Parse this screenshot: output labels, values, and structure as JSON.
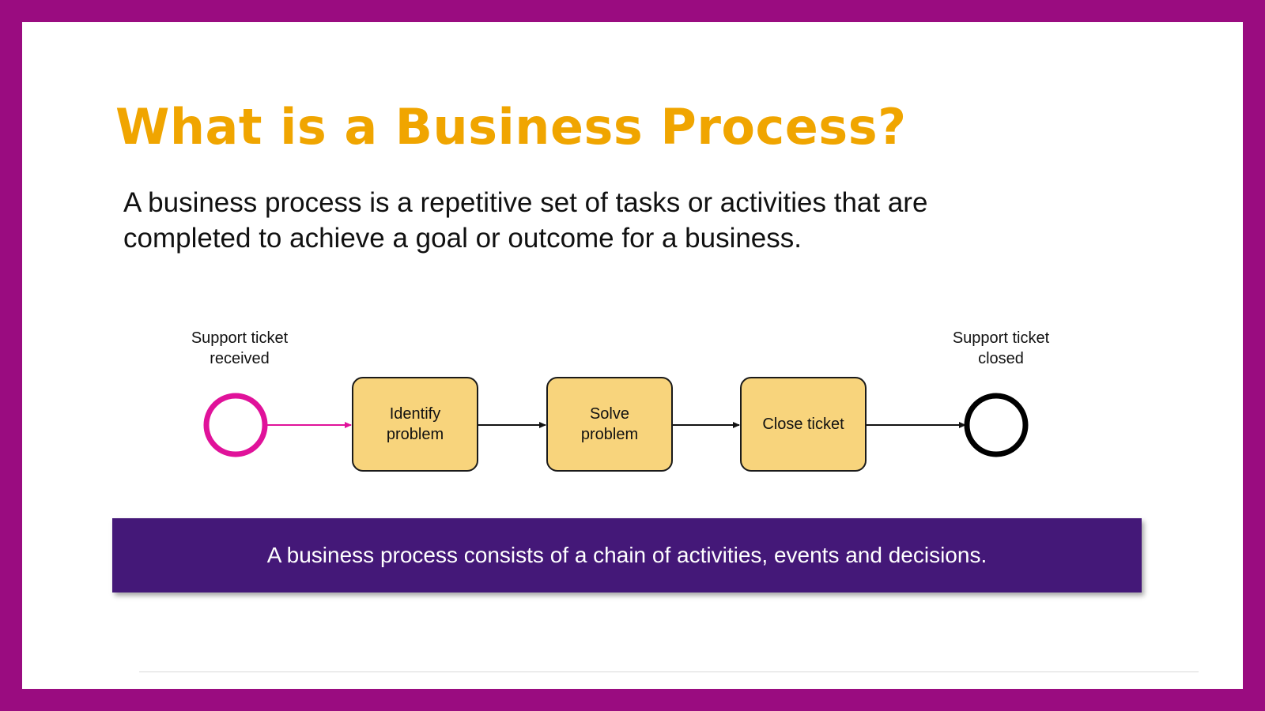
{
  "slide": {
    "title": "What is a Business Process?",
    "intro": "A business process is a repetitive set of tasks or activities that are completed to achieve a goal or outcome for a business.",
    "banner": "A business process consists of a chain of activities, events and decisions."
  },
  "diagram": {
    "start_event": {
      "label_line1": "Support ticket",
      "label_line2": "received",
      "color": "#e0129a"
    },
    "end_event": {
      "label_line1": "Support ticket",
      "label_line2": "closed",
      "color": "#000000"
    },
    "tasks": [
      {
        "line1": "Identify",
        "line2": "problem"
      },
      {
        "line1": "Solve",
        "line2": "problem"
      },
      {
        "line1": "Close ticket",
        "line2": ""
      }
    ]
  },
  "colors": {
    "frame": "#9a0c80",
    "title": "#f0a500",
    "task_fill": "#f8d47c",
    "banner": "#441878",
    "start_connector": "#e0129a"
  }
}
